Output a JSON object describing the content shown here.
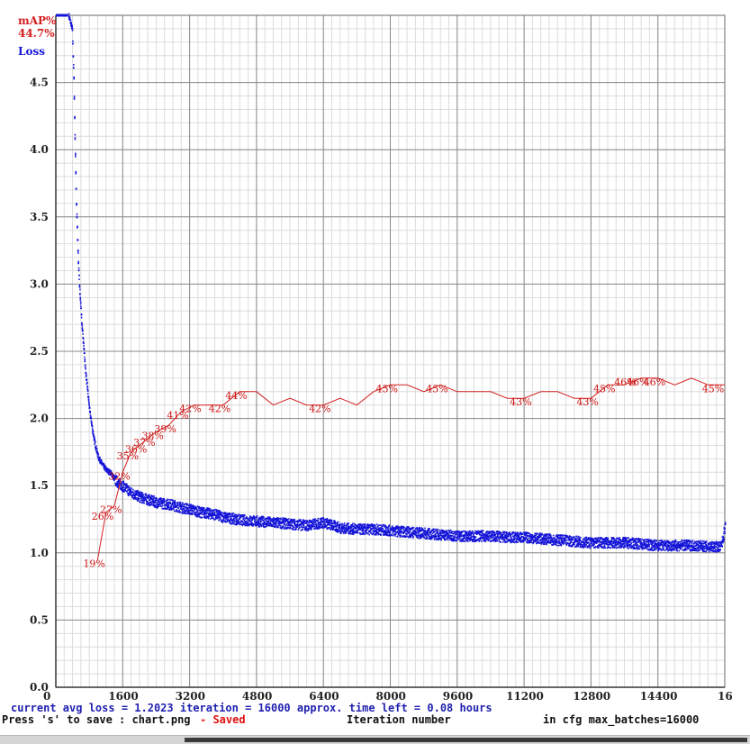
{
  "chart_data": {
    "type": "line",
    "legend": [
      "mAP%",
      "44.7%",
      "Loss"
    ],
    "x_ticks": [
      "0",
      "1600",
      "3200",
      "4800",
      "6400",
      "8000",
      "9600",
      "11200",
      "12800",
      "14400",
      "16"
    ],
    "y_ticks": [
      "0.0",
      "0.5",
      "1.0",
      "1.5",
      "2.0",
      "2.5",
      "3.0",
      "3.5",
      "4.0",
      "4.5"
    ],
    "xlim": [
      0,
      16000
    ],
    "ylim": [
      0,
      5
    ],
    "grid": true,
    "series": [
      {
        "name": "Loss",
        "color": "#1515d8",
        "x": [
          300,
          380,
          420,
          450,
          480,
          520,
          560,
          600,
          650,
          700,
          750,
          800,
          850,
          900,
          950,
          1000,
          1100,
          1200,
          1300,
          1400,
          1500,
          1600,
          1800,
          2000,
          2200,
          2400,
          2600,
          2800,
          3000,
          3200,
          3400,
          3600,
          3800,
          4000,
          4400,
          4800,
          5200,
          5600,
          6000,
          6400,
          6800,
          7200,
          7600,
          8000,
          8400,
          8800,
          9200,
          9600,
          10000,
          10400,
          10800,
          11200,
          11600,
          12000,
          12400,
          12800,
          13200,
          13600,
          14000,
          14400,
          14800,
          15200,
          15600,
          15900,
          16000
        ],
        "y": [
          5.0,
          4.9,
          4.5,
          4.0,
          3.6,
          3.2,
          2.95,
          2.75,
          2.55,
          2.35,
          2.2,
          2.05,
          1.95,
          1.85,
          1.78,
          1.72,
          1.66,
          1.62,
          1.6,
          1.55,
          1.52,
          1.5,
          1.45,
          1.42,
          1.4,
          1.38,
          1.37,
          1.36,
          1.34,
          1.33,
          1.31,
          1.3,
          1.29,
          1.27,
          1.25,
          1.24,
          1.23,
          1.22,
          1.21,
          1.23,
          1.19,
          1.18,
          1.18,
          1.17,
          1.16,
          1.15,
          1.14,
          1.13,
          1.13,
          1.13,
          1.12,
          1.12,
          1.11,
          1.1,
          1.09,
          1.08,
          1.08,
          1.08,
          1.07,
          1.06,
          1.06,
          1.06,
          1.05,
          1.05,
          1.2
        ]
      },
      {
        "name": "mAP%",
        "color": "#d42020",
        "x": [
          1000,
          1200,
          1400,
          1600,
          1800,
          2000,
          2200,
          2400,
          2700,
          3000,
          3300,
          3600,
          4000,
          4400,
          4800,
          5200,
          5600,
          6000,
          6400,
          6800,
          7200,
          7600,
          8000,
          8400,
          8800,
          9200,
          9600,
          10000,
          10400,
          10800,
          11200,
          11600,
          12000,
          12400,
          12800,
          13200,
          13600,
          14000,
          14400,
          14800,
          15200,
          15600,
          16000
        ],
        "y": [
          0.19,
          0.26,
          0.27,
          0.32,
          0.35,
          0.36,
          0.37,
          0.38,
          0.39,
          0.41,
          0.42,
          0.42,
          0.42,
          0.44,
          0.44,
          0.42,
          0.43,
          0.42,
          0.42,
          0.43,
          0.42,
          0.44,
          0.45,
          0.45,
          0.44,
          0.45,
          0.44,
          0.44,
          0.44,
          0.43,
          0.43,
          0.44,
          0.44,
          0.43,
          0.43,
          0.45,
          0.45,
          0.46,
          0.46,
          0.45,
          0.46,
          0.45,
          0.45
        ]
      }
    ],
    "map_labels": [
      {
        "x": 1000,
        "y": 0.19,
        "text": "19%"
      },
      {
        "x": 1200,
        "y": 0.26,
        "text": "26%"
      },
      {
        "x": 1400,
        "y": 0.27,
        "text": "27%"
      },
      {
        "x": 1600,
        "y": 0.32,
        "text": "32%"
      },
      {
        "x": 1800,
        "y": 0.35,
        "text": "35%"
      },
      {
        "x": 2000,
        "y": 0.36,
        "text": "36%"
      },
      {
        "x": 2200,
        "y": 0.37,
        "text": "37%"
      },
      {
        "x": 2400,
        "y": 0.38,
        "text": "38%"
      },
      {
        "x": 2700,
        "y": 0.39,
        "text": "39%"
      },
      {
        "x": 3000,
        "y": 0.41,
        "text": "41%"
      },
      {
        "x": 3300,
        "y": 0.42,
        "text": "42%"
      },
      {
        "x": 4000,
        "y": 0.42,
        "text": "42%"
      },
      {
        "x": 4400,
        "y": 0.44,
        "text": "44%"
      },
      {
        "x": 6400,
        "y": 0.42,
        "text": "42%"
      },
      {
        "x": 8000,
        "y": 0.45,
        "text": "45%"
      },
      {
        "x": 9200,
        "y": 0.45,
        "text": "45%"
      },
      {
        "x": 11200,
        "y": 0.43,
        "text": "43%"
      },
      {
        "x": 12800,
        "y": 0.43,
        "text": "43%"
      },
      {
        "x": 13200,
        "y": 0.45,
        "text": "45%"
      },
      {
        "x": 13700,
        "y": 0.46,
        "text": "46%"
      },
      {
        "x": 14000,
        "y": 0.46,
        "text": "46%"
      },
      {
        "x": 14400,
        "y": 0.46,
        "text": "46%"
      },
      {
        "x": 15800,
        "y": 0.45,
        "text": "45%"
      }
    ]
  },
  "footer": {
    "status_line": "current avg loss = 1.2023    iteration = 16000    approx. time left = 0.08 hours",
    "save_prompt": "Press 's' to save : chart.png",
    "save_status": "- Saved",
    "x_axis_label": "Iteration number",
    "cfg_info": "in cfg max_batches=16000"
  }
}
